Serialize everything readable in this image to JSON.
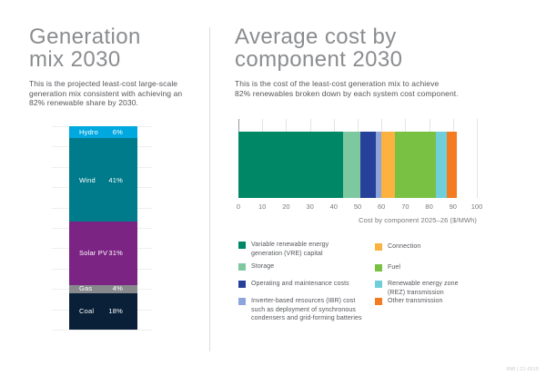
{
  "page": {
    "background": "#FFFFFF",
    "footer_id": "RMI | 21-0019"
  },
  "left_panel": {
    "title": "Generation\nmix 2030",
    "subtitle": "This is the projected least-cost large-scale\ngeneration mix consistent with achieving an\n82% renewable share by 2030."
  },
  "right_panel": {
    "title": "Average cost by\ncomponent 2030",
    "subtitle": "This is the cost of the least-cost generation mix to achieve\n82% renewables broken down by each system cost component."
  },
  "chart_data": [
    {
      "type": "bar",
      "variant": "vertical-stacked-100pct",
      "title": "Generation mix 2030",
      "grid": true,
      "gridlines_every_pct": 10,
      "segments": [
        {
          "label": "Hydro",
          "value_pct": 6,
          "color": "#00A8E0"
        },
        {
          "label": "Wind",
          "value_pct": 41,
          "color": "#007B8B"
        },
        {
          "label": "Solar PV",
          "value_pct": 31,
          "color": "#7B2483"
        },
        {
          "label": "Gas",
          "value_pct": 4,
          "color": "#87898C"
        },
        {
          "label": "Coal",
          "value_pct": 18,
          "color": "#0A2038"
        }
      ]
    },
    {
      "type": "bar",
      "variant": "horizontal-stacked",
      "title": "Average cost by component 2030",
      "xlabel": "Cost by component 2025–26 ($/MWh)",
      "xlim": [
        0,
        100
      ],
      "xticks": [
        0,
        10,
        20,
        30,
        40,
        50,
        60,
        70,
        80,
        90,
        100
      ],
      "grid": true,
      "total_approx": 91.5,
      "segments": [
        {
          "label": "Variable renewable energy generation (VRE) capital",
          "value": 44,
          "color": "#008765"
        },
        {
          "label": "Storage",
          "value": 7,
          "color": "#7EC8A0"
        },
        {
          "label": "Operating and maintenance costs",
          "value": 6.5,
          "color": "#27419A"
        },
        {
          "label": "Inverter-based resources (IBR) cost such as deployment of synchronous condensers and grid-forming batteries",
          "value": 2.5,
          "color": "#8EA5DB"
        },
        {
          "label": "Connection",
          "value": 5.5,
          "color": "#FBB23E"
        },
        {
          "label": "Fuel",
          "value": 17.5,
          "color": "#79C143"
        },
        {
          "label": "Renewable energy zone (REZ) transmission",
          "value": 4.5,
          "color": "#6ECED9"
        },
        {
          "label": "Other transmission",
          "value": 4,
          "color": "#F47B20"
        }
      ]
    }
  ],
  "legend": {
    "columns": [
      [
        {
          "text": "Variable renewable energy\ngeneration (VRE) capital",
          "color": "#008765"
        },
        {
          "text": "Storage",
          "color": "#7EC8A0"
        },
        {
          "text": "Operating and maintenance costs",
          "color": "#27419A"
        },
        {
          "text": "Inverter-based resources (IBR) cost\nsuch as deployment of synchronous\ncondensers and grid-forming batteries",
          "color": "#8EA5DB"
        }
      ],
      [
        {
          "text": "Connection",
          "color": "#FBB23E"
        },
        {
          "text": "Fuel",
          "color": "#79C143"
        },
        {
          "text": "Renewable energy zone\n(REZ) transmission",
          "color": "#6ECED9"
        },
        {
          "text": "Other transmission",
          "color": "#F47B20"
        }
      ]
    ]
  }
}
